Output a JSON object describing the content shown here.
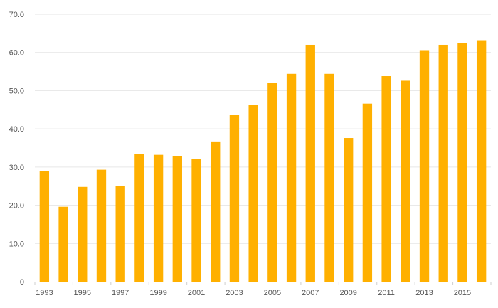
{
  "chart_data": {
    "type": "bar",
    "title": "",
    "xlabel": "",
    "ylabel": "",
    "categories": [
      "1993",
      "1994",
      "1995",
      "1996",
      "1997",
      "1998",
      "1999",
      "2000",
      "2001",
      "2002",
      "2003",
      "2004",
      "2005",
      "2006",
      "2007",
      "2008",
      "2009",
      "2010",
      "2011",
      "2012",
      "2013",
      "2014",
      "2015",
      "2016"
    ],
    "x_tick_labels": [
      "1993",
      "1995",
      "1997",
      "1999",
      "2001",
      "2003",
      "2005",
      "2007",
      "2009",
      "2011",
      "2013",
      "2015"
    ],
    "values": [
      28.9,
      19.6,
      24.8,
      29.3,
      25.0,
      33.5,
      33.2,
      32.8,
      32.1,
      36.7,
      43.6,
      46.2,
      52.0,
      54.4,
      62.0,
      54.4,
      37.6,
      46.6,
      53.8,
      52.6,
      60.6,
      62.0,
      62.4,
      63.2
    ],
    "ylim": [
      0,
      70
    ],
    "y_ticks": [
      0,
      10,
      20,
      30,
      40,
      50,
      60,
      70
    ],
    "y_tick_labels": [
      "0",
      "10.0",
      "20.0",
      "30.0",
      "40.0",
      "50.0",
      "60.0",
      "70.0"
    ],
    "grid": true,
    "colors": {
      "bar": "#FFB000"
    }
  }
}
